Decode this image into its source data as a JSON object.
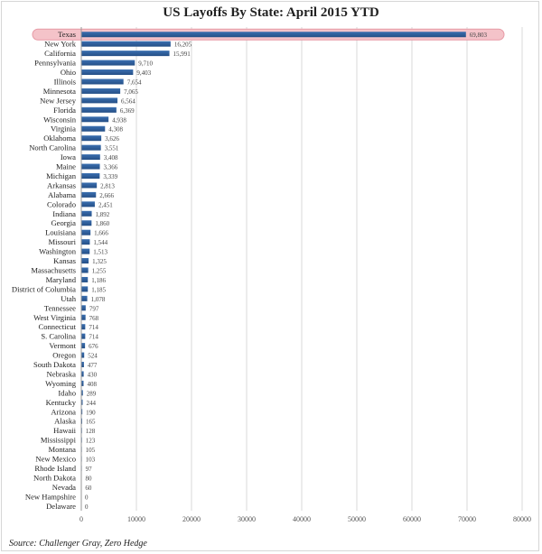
{
  "chart_data": {
    "type": "bar",
    "orientation": "horizontal",
    "title": "US Layoffs By State: April 2015 YTD",
    "source": "Source: Challenger Gray, Zero Hedge",
    "highlight": "Texas",
    "xlim": [
      0,
      80000
    ],
    "xticks": [
      0,
      10000,
      20000,
      30000,
      40000,
      50000,
      60000,
      70000,
      80000
    ],
    "xtick_labels": [
      "0",
      "10000",
      "20000",
      "30000",
      "40000",
      "50000",
      "60000",
      "70000",
      "80000"
    ],
    "grid": true,
    "categories": [
      "Texas",
      "New York",
      "California",
      "Pennsylvania",
      "Ohio",
      "Illinois",
      "Minnesota",
      "New Jersey",
      "Florida",
      "Wisconsin",
      "Virginia",
      "Oklahoma",
      "North Carolina",
      "Iowa",
      "Maine",
      "Michigan",
      "Arkansas",
      "Alabama",
      "Colorado",
      "Indiana",
      "Georgia",
      "Louisiana",
      "Missouri",
      "Washington",
      "Kansas",
      "Massachusetts",
      "Maryland",
      "District of Columbia",
      "Utah",
      "Tennessee",
      "West Virginia",
      "Connecticut",
      "S. Carolina",
      "Vermont",
      "Oregon",
      "South Dakota",
      "Nebraska",
      "Wyoming",
      "Idaho",
      "Kentucky",
      "Arizona",
      "Alaska",
      "Hawaii",
      "Mississippi",
      "Montana",
      "New Mexico",
      "Rhode Island",
      "North Dakota",
      "Nevada",
      "New Hampshire",
      "Delaware"
    ],
    "values": [
      69803,
      16205,
      15991,
      9710,
      9403,
      7654,
      7065,
      6564,
      6369,
      4938,
      4308,
      3626,
      3551,
      3408,
      3366,
      3339,
      2813,
      2666,
      2451,
      1892,
      1860,
      1666,
      1544,
      1513,
      1325,
      1255,
      1186,
      1185,
      1078,
      797,
      768,
      714,
      714,
      676,
      524,
      477,
      430,
      408,
      289,
      244,
      190,
      165,
      128,
      123,
      105,
      103,
      97,
      80,
      60,
      0,
      0
    ],
    "value_labels": [
      "69,803",
      "16,205",
      "15,991",
      "9,710",
      "9,403",
      "7,654",
      "7,065",
      "6,564",
      "6,369",
      "4,938",
      "4,308",
      "3,626",
      "3,551",
      "3,408",
      "3,366",
      "3,339",
      "2,813",
      "2,666",
      "2,451",
      "1,892",
      "1,860",
      "1,666",
      "1,544",
      "1,513",
      "1,325",
      "1,255",
      "1,186",
      "1,185",
      "1,078",
      "797",
      "768",
      "714",
      "714",
      "676",
      "524",
      "477",
      "430",
      "408",
      "289",
      "244",
      "190",
      "165",
      "128",
      "123",
      "105",
      "103",
      "97",
      "80",
      "60",
      "0",
      "0"
    ],
    "colors": {
      "bar": "#3a6fb0",
      "bar_dark": "#254f86",
      "highlight_fill": "#f4c3c9",
      "highlight_stroke": "#e79aa5",
      "grid": "#d9d9d9",
      "text": "#222222"
    }
  }
}
